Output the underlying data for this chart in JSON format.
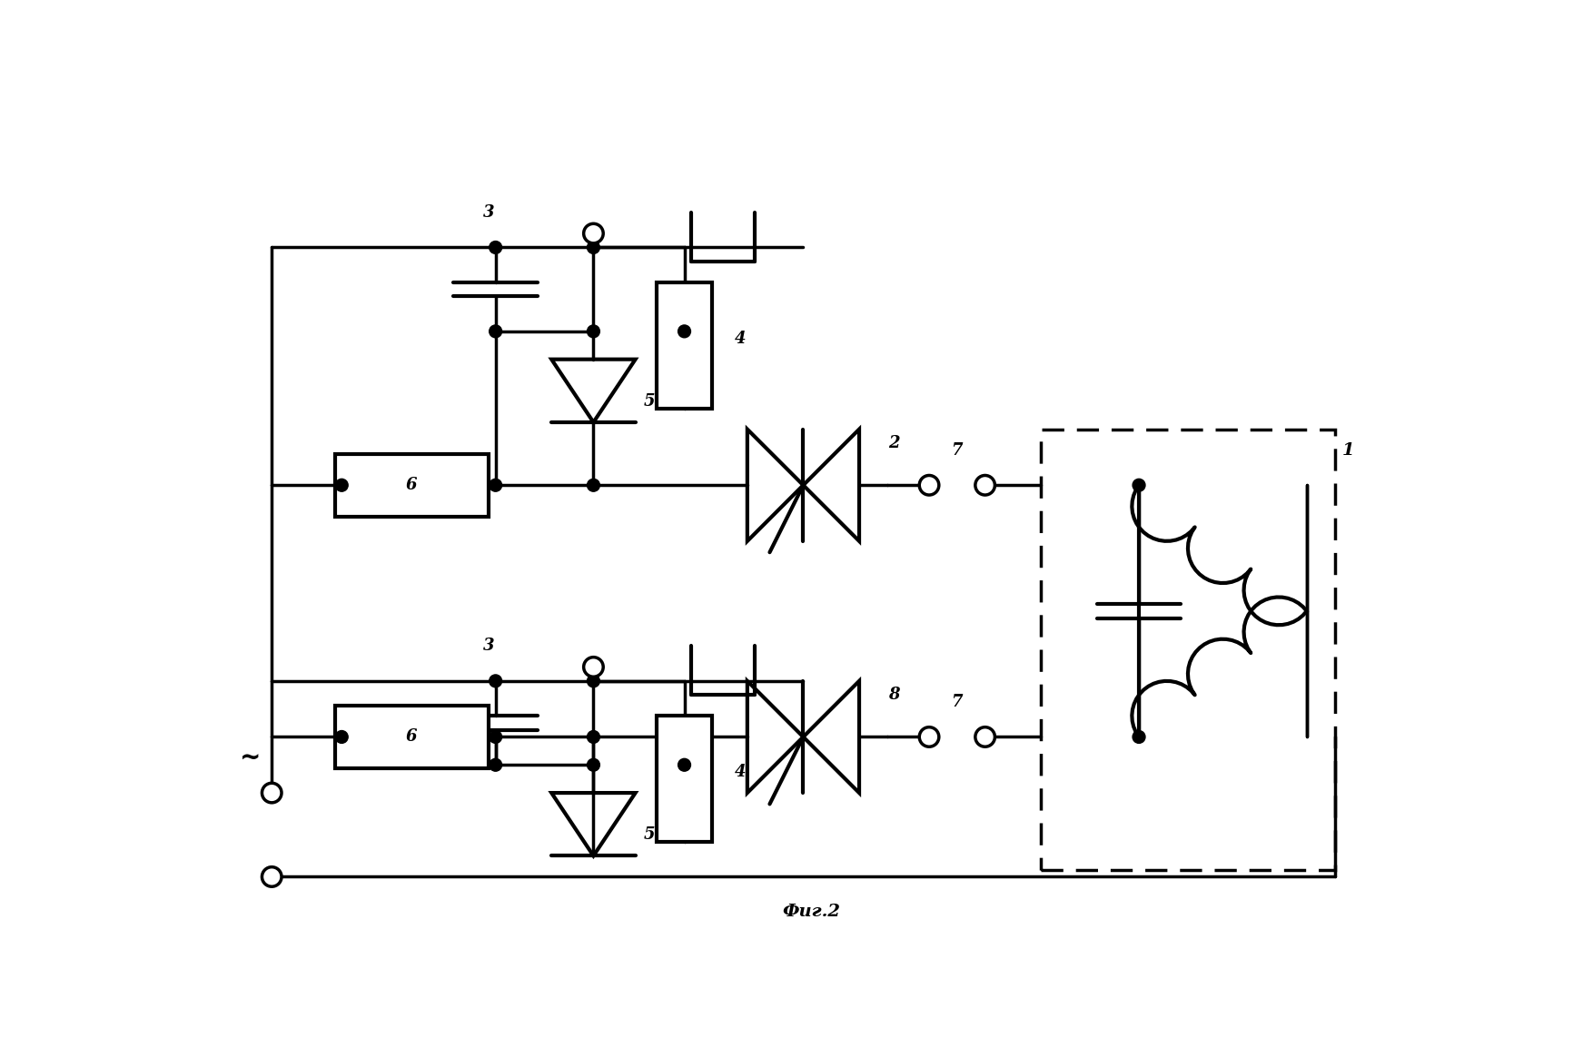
{
  "background_color": "#ffffff",
  "line_color": "#000000",
  "lw": 2.5,
  "lw_thick": 3.0,
  "figsize": [
    17.43,
    11.54
  ],
  "dpi": 100,
  "caption": "Фиг.2"
}
